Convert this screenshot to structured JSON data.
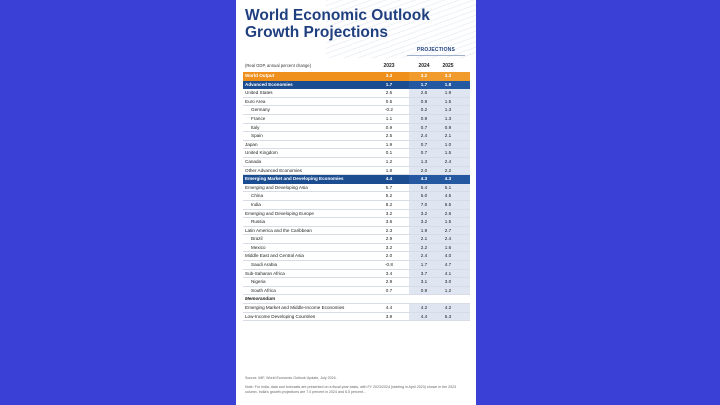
{
  "colors": {
    "background": "#3a3fd6",
    "title": "#1f3f7f",
    "world_output_row": "#ef8f1c",
    "group_row": "#1c4d91",
    "projection_shade": "#dfe6f2"
  },
  "document": {
    "title_line1": "World Economic Outlook",
    "title_line2": "Growth Projections",
    "projections_label": "PROJECTIONS",
    "unit_label": "(Real GDP, annual percent change)",
    "years": [
      "2023",
      "2024",
      "2025"
    ],
    "rows": [
      {
        "label": "World Output",
        "v": [
          "3.3",
          "3.2",
          "3.3"
        ],
        "style": "orange"
      },
      {
        "label": "Advanced Economies",
        "v": [
          "1.7",
          "1.7",
          "1.8"
        ],
        "style": "blue"
      },
      {
        "label": "United States",
        "v": [
          "2.5",
          "2.6",
          "1.9"
        ],
        "style": ""
      },
      {
        "label": "Euro Area",
        "v": [
          "0.5",
          "0.9",
          "1.5"
        ],
        "style": ""
      },
      {
        "label": "Germany",
        "v": [
          "-0.2",
          "0.2",
          "1.3"
        ],
        "style": "ind"
      },
      {
        "label": "France",
        "v": [
          "1.1",
          "0.9",
          "1.3"
        ],
        "style": "ind"
      },
      {
        "label": "Italy",
        "v": [
          "0.9",
          "0.7",
          "0.9"
        ],
        "style": "ind"
      },
      {
        "label": "Spain",
        "v": [
          "2.5",
          "2.4",
          "2.1"
        ],
        "style": "ind"
      },
      {
        "label": "Japan",
        "v": [
          "1.9",
          "0.7",
          "1.0"
        ],
        "style": ""
      },
      {
        "label": "United Kingdom",
        "v": [
          "0.1",
          "0.7",
          "1.5"
        ],
        "style": ""
      },
      {
        "label": "Canada",
        "v": [
          "1.2",
          "1.3",
          "2.4"
        ],
        "style": ""
      },
      {
        "label": "Other Advanced Economies",
        "v": [
          "1.8",
          "2.0",
          "2.2"
        ],
        "style": ""
      },
      {
        "label": "Emerging Market and Developing Economies",
        "v": [
          "4.4",
          "4.3",
          "4.3"
        ],
        "style": "blue"
      },
      {
        "label": "Emerging and Developing Asia",
        "v": [
          "5.7",
          "5.4",
          "5.1"
        ],
        "style": ""
      },
      {
        "label": "China",
        "v": [
          "5.2",
          "5.0",
          "4.5"
        ],
        "style": "ind"
      },
      {
        "label": "India",
        "v": [
          "8.2",
          "7.0",
          "6.5"
        ],
        "style": "ind"
      },
      {
        "label": "Emerging and Developing Europe",
        "v": [
          "3.2",
          "3.2",
          "2.6"
        ],
        "style": ""
      },
      {
        "label": "Russia",
        "v": [
          "3.6",
          "3.2",
          "1.5"
        ],
        "style": "ind"
      },
      {
        "label": "Latin America and the Caribbean",
        "v": [
          "2.3",
          "1.9",
          "2.7"
        ],
        "style": ""
      },
      {
        "label": "Brazil",
        "v": [
          "2.9",
          "2.1",
          "2.4"
        ],
        "style": "ind"
      },
      {
        "label": "Mexico",
        "v": [
          "3.2",
          "2.2",
          "1.6"
        ],
        "style": "ind"
      },
      {
        "label": "Middle East and Central Asia",
        "v": [
          "2.0",
          "2.4",
          "4.0"
        ],
        "style": ""
      },
      {
        "label": "Saudi Arabia",
        "v": [
          "-0.8",
          "1.7",
          "4.7"
        ],
        "style": "ind"
      },
      {
        "label": "Sub-Saharan Africa",
        "v": [
          "3.4",
          "3.7",
          "4.1"
        ],
        "style": ""
      },
      {
        "label": "Nigeria",
        "v": [
          "2.9",
          "3.1",
          "3.0"
        ],
        "style": "ind"
      },
      {
        "label": "South Africa",
        "v": [
          "0.7",
          "0.9",
          "1.2"
        ],
        "style": "ind"
      },
      {
        "label": "Memorandum",
        "v": [
          "",
          "",
          ""
        ],
        "style": "memo"
      },
      {
        "label": "Emerging Market and Middle-Income Economies",
        "v": [
          "4.4",
          "4.2",
          "4.2"
        ],
        "style": ""
      },
      {
        "label": "Low-Income Developing Countries",
        "v": [
          "3.9",
          "4.4",
          "5.3"
        ],
        "style": ""
      }
    ],
    "source": "Source: IMF, World Economic Outlook Update, July 2024.",
    "note": "Note: For India, data and forecasts are presented on a fiscal year basis, with FY 2023/2024 (starting in April 2023) shown in the 2023 column. India's growth projections are 7.0 percent in 2024 and 6.5 percent..."
  }
}
